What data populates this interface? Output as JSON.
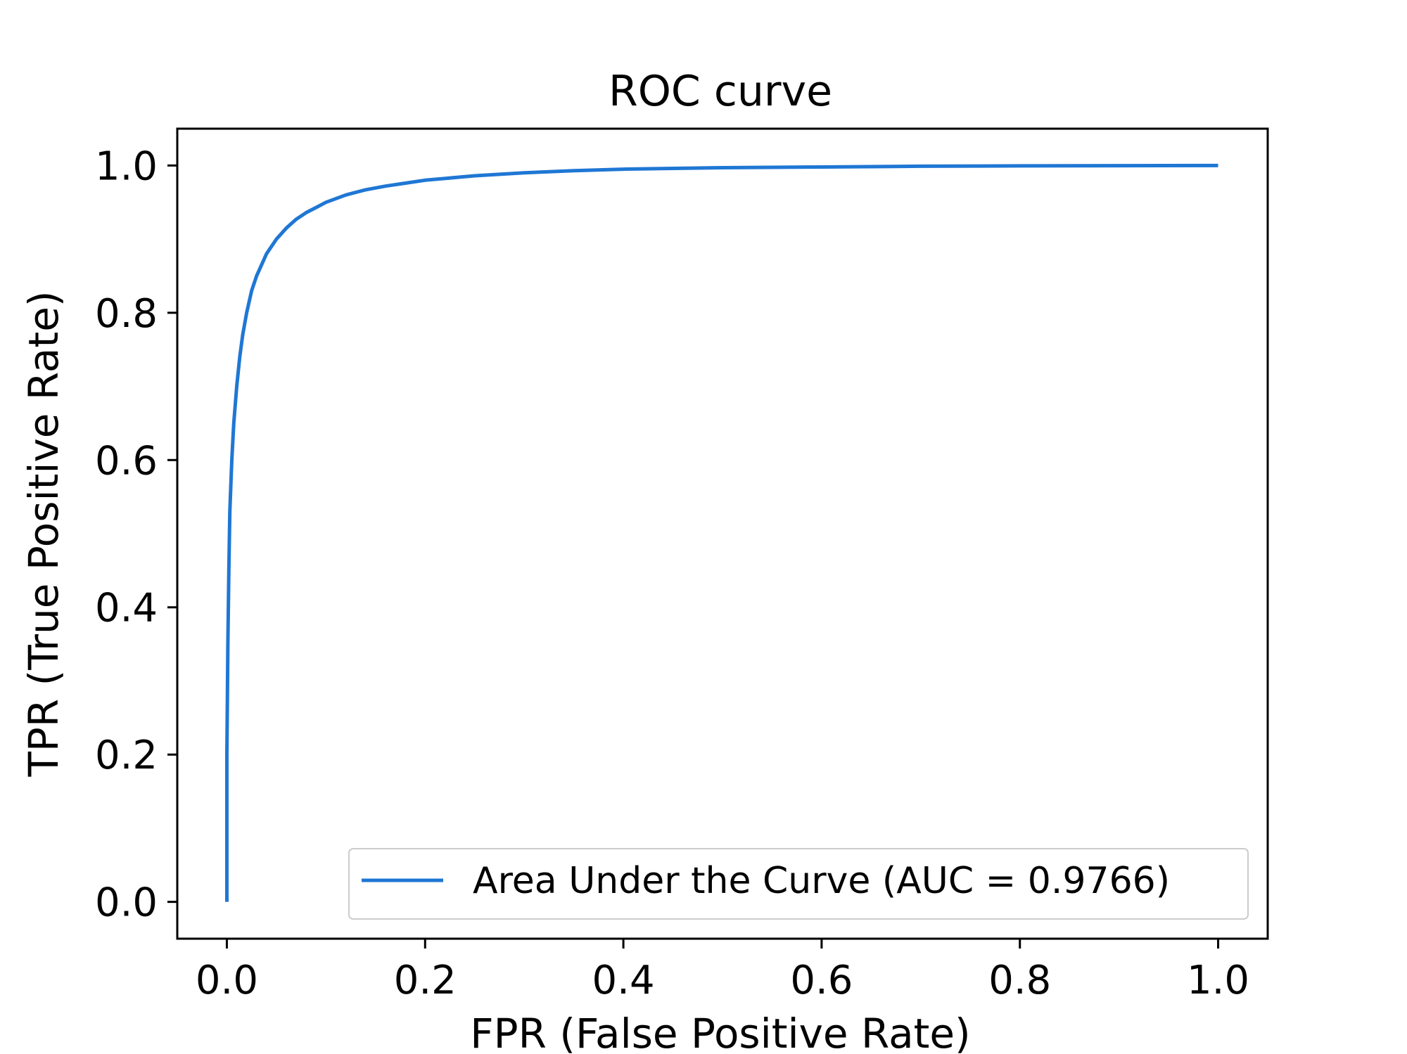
{
  "chart_data": {
    "type": "line",
    "title": "ROC curve",
    "xlabel": "FPR (False Positive Rate)",
    "ylabel": "TPR (True Positive Rate)",
    "xlim": [
      -0.05,
      1.05
    ],
    "ylim": [
      -0.05,
      1.05
    ],
    "xticks": [
      "0.0",
      "0.2",
      "0.4",
      "0.6",
      "0.8",
      "1.0"
    ],
    "yticks": [
      "0.0",
      "0.2",
      "0.4",
      "0.6",
      "0.8",
      "1.0"
    ],
    "grid": false,
    "legend_position": "lower-right",
    "series": [
      {
        "name": "Area Under the Curve (AUC = 0.9766)",
        "color": "#1f77d4",
        "x": [
          0.0,
          0.0,
          0.001,
          0.002,
          0.003,
          0.005,
          0.007,
          0.01,
          0.013,
          0.016,
          0.02,
          0.025,
          0.03,
          0.035,
          0.04,
          0.05,
          0.06,
          0.07,
          0.08,
          0.09,
          0.1,
          0.12,
          0.14,
          0.16,
          0.18,
          0.2,
          0.25,
          0.3,
          0.35,
          0.4,
          0.5,
          0.6,
          0.7,
          0.8,
          0.9,
          1.0
        ],
        "y": [
          0.0,
          0.2,
          0.35,
          0.45,
          0.53,
          0.6,
          0.65,
          0.7,
          0.74,
          0.77,
          0.8,
          0.83,
          0.85,
          0.865,
          0.88,
          0.9,
          0.915,
          0.927,
          0.936,
          0.943,
          0.95,
          0.96,
          0.967,
          0.972,
          0.976,
          0.98,
          0.986,
          0.99,
          0.993,
          0.995,
          0.997,
          0.998,
          0.999,
          0.9995,
          0.9998,
          1.0
        ]
      }
    ]
  }
}
